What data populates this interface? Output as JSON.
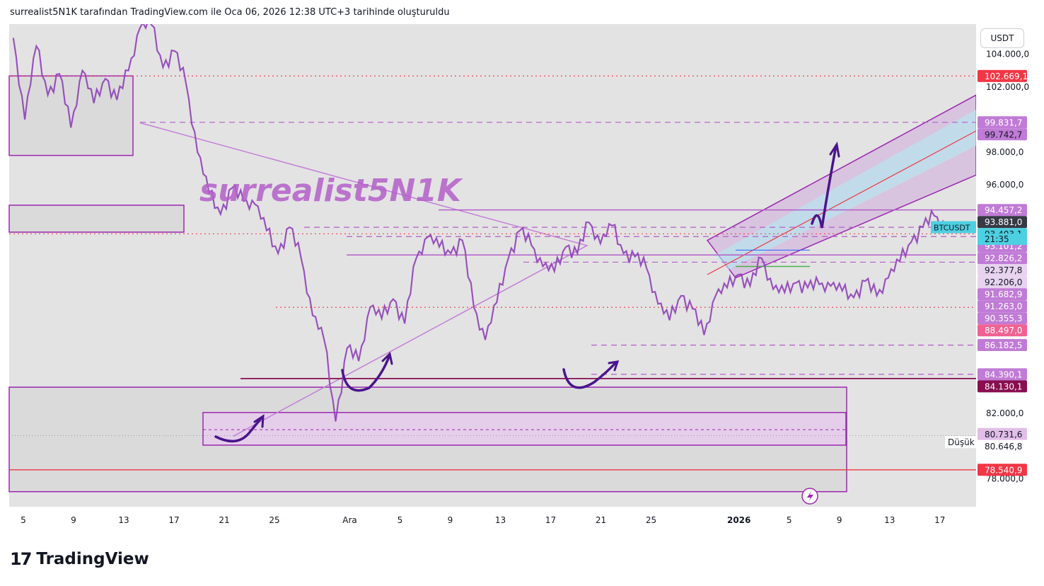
{
  "header": {
    "attribution": "surrealist5N1K tarafından TradingView.com ile Oca 06, 2026 12:38 UTC+3 tarihinde oluşturuldu"
  },
  "currency_button": "USDT",
  "watermark": "surrealist5N1K",
  "footer": {
    "logo_mark": "17",
    "brand": "TradingView"
  },
  "chart_data": {
    "type": "line",
    "symbol": "BTCUSDT",
    "countdown": "21:35",
    "last_price": 93403.1,
    "y_range": [
      77200,
      106000
    ],
    "y_ticks": [
      {
        "value": 104000,
        "label": "104.000,0"
      },
      {
        "value": 102000,
        "label": "102.000,0"
      },
      {
        "value": 98000,
        "label": "98.000,0"
      },
      {
        "value": 96000,
        "label": "96.000,0"
      },
      {
        "value": 82000,
        "label": "82.000,0"
      },
      {
        "value": 78000,
        "label": "78.000,0"
      }
    ],
    "x_ticks": [
      {
        "label": "5",
        "day": 5
      },
      {
        "label": "9",
        "day": 9
      },
      {
        "label": "13",
        "day": 13
      },
      {
        "label": "17",
        "day": 17
      },
      {
        "label": "21",
        "day": 21
      },
      {
        "label": "25",
        "day": 25
      },
      {
        "label": "Ara",
        "day": 31
      },
      {
        "label": "5",
        "day": 35
      },
      {
        "label": "9",
        "day": 39
      },
      {
        "label": "13",
        "day": 43
      },
      {
        "label": "17",
        "day": 47
      },
      {
        "label": "21",
        "day": 51
      },
      {
        "label": "25",
        "day": 55
      },
      {
        "label": "2026",
        "day": 62
      },
      {
        "label": "5",
        "day": 66
      },
      {
        "label": "9",
        "day": 70
      },
      {
        "label": "13",
        "day": 74
      },
      {
        "label": "17",
        "day": 78
      }
    ],
    "price_labels": [
      {
        "label": "102.669,1",
        "value": 102669.1,
        "bg": "#f23645",
        "fg": "#ffffff"
      },
      {
        "label": "99.831,7",
        "value": 99831.7,
        "bg": "#c07bd6",
        "fg": "#ffffff"
      },
      {
        "label": "99.742,7",
        "value": 99742.7,
        "bg": "#c07bd6",
        "fg": "#131722"
      },
      {
        "label": "94.457,2",
        "value": 94457.2,
        "bg": "#c07bd6",
        "fg": "#ffffff"
      },
      {
        "label": "93.881,0",
        "value": 93881.0,
        "bg": "#363a45",
        "fg": "#ffffff"
      },
      {
        "label": "93.403,1",
        "value": 93403.1,
        "bg": "#4dd0e1",
        "fg": "#131722"
      },
      {
        "label": "93.101,2",
        "value": 93101.2,
        "bg": "#c07bd6",
        "fg": "#ffffff"
      },
      {
        "label": "92.826,2",
        "value": 92826.2,
        "bg": "#c07bd6",
        "fg": "#ffffff"
      },
      {
        "label": "92.377,8",
        "value": 92377.8,
        "bg": "#e8d3ef",
        "fg": "#131722"
      },
      {
        "label": "92.206,0",
        "value": 92206.0,
        "bg": "#e8d3ef",
        "fg": "#131722"
      },
      {
        "label": "91.682,9",
        "value": 91682.9,
        "bg": "#c07bd6",
        "fg": "#ffffff"
      },
      {
        "label": "91.263,0",
        "value": 91263.0,
        "bg": "#c07bd6",
        "fg": "#ffffff"
      },
      {
        "label": "90.355,3",
        "value": 90355.3,
        "bg": "#c07bd6",
        "fg": "#ffffff"
      },
      {
        "label": "88.497,0",
        "value": 88497.0,
        "bg": "#f06292",
        "fg": "#ffffff"
      },
      {
        "label": "86.182,5",
        "value": 86182.5,
        "bg": "#c07bd6",
        "fg": "#ffffff"
      },
      {
        "label": "84.390,1",
        "value": 84390.1,
        "bg": "#c07bd6",
        "fg": "#ffffff"
      },
      {
        "label": "84.130,1",
        "value": 84130.1,
        "bg": "#880e4f",
        "fg": "#ffffff"
      },
      {
        "label": "80.731,6",
        "value": 80731.6,
        "bg": "#e1bee7",
        "fg": "#131722"
      },
      {
        "label": "80.646,8",
        "value": 80646.8,
        "bg": "#ffffff",
        "fg": "#131722"
      },
      {
        "label": "78.540,9",
        "value": 78540.9,
        "bg": "#f23645",
        "fg": "#ffffff"
      }
    ],
    "low_label": "Düşük",
    "price_path": [
      [
        0,
        105000
      ],
      [
        1,
        100000
      ],
      [
        2,
        104500
      ],
      [
        3,
        101500
      ],
      [
        4,
        102800
      ],
      [
        5,
        99500
      ],
      [
        6,
        103000
      ],
      [
        7,
        101000
      ],
      [
        8,
        102500
      ],
      [
        9,
        101200
      ],
      [
        10,
        103000
      ],
      [
        11,
        105600
      ],
      [
        12,
        105800
      ],
      [
        13,
        103200
      ],
      [
        14,
        104200
      ],
      [
        15,
        102200
      ],
      [
        16,
        98000
      ],
      [
        17,
        95500
      ],
      [
        18,
        94200
      ],
      [
        19,
        95800
      ],
      [
        20,
        95000
      ],
      [
        21,
        94800
      ],
      [
        22,
        93200
      ],
      [
        23,
        91800
      ],
      [
        24,
        93400
      ],
      [
        25,
        91500
      ],
      [
        26,
        88000
      ],
      [
        27,
        86500
      ],
      [
        28,
        81500
      ],
      [
        29,
        86000
      ],
      [
        30,
        85200
      ],
      [
        31,
        88500
      ],
      [
        32,
        87800
      ],
      [
        33,
        89000
      ],
      [
        34,
        87500
      ],
      [
        35,
        91500
      ],
      [
        36,
        92800
      ],
      [
        37,
        92200
      ],
      [
        38,
        91800
      ],
      [
        39,
        92600
      ],
      [
        40,
        88500
      ],
      [
        41,
        86500
      ],
      [
        42,
        88800
      ],
      [
        43,
        91500
      ],
      [
        44,
        93200
      ],
      [
        45,
        92300
      ],
      [
        46,
        91000
      ],
      [
        47,
        90700
      ],
      [
        48,
        92200
      ],
      [
        49,
        91800
      ],
      [
        50,
        93700
      ],
      [
        51,
        92400
      ],
      [
        52,
        93500
      ],
      [
        53,
        91800
      ],
      [
        54,
        91600
      ],
      [
        55,
        90900
      ],
      [
        56,
        88700
      ],
      [
        57,
        87700
      ],
      [
        58,
        89200
      ],
      [
        59,
        88400
      ],
      [
        60,
        86800
      ],
      [
        61,
        89200
      ],
      [
        62,
        89700
      ],
      [
        63,
        90500
      ],
      [
        64,
        89800
      ],
      [
        65,
        91500
      ],
      [
        66,
        89600
      ],
      [
        67,
        89400
      ],
      [
        68,
        90000
      ],
      [
        69,
        89700
      ],
      [
        70,
        89900
      ],
      [
        71,
        89800
      ],
      [
        72,
        89500
      ],
      [
        73,
        89100
      ],
      [
        74,
        90100
      ],
      [
        75,
        89200
      ],
      [
        76,
        90300
      ],
      [
        77,
        91300
      ],
      [
        78,
        92500
      ],
      [
        79,
        93400
      ],
      [
        80,
        94100
      ],
      [
        81,
        93400
      ]
    ],
    "annotations": {
      "range_box": {
        "top": 83600,
        "bottom": 80300
      },
      "support_line": {
        "value": 84130.1
      },
      "zone_lines": [
        99831.7,
        94457.2,
        93101.2,
        92826.2,
        90355.3,
        86182.5,
        84390.1
      ],
      "red_lines": [
        102669.1,
        78540.9,
        88497.0
      ]
    }
  }
}
